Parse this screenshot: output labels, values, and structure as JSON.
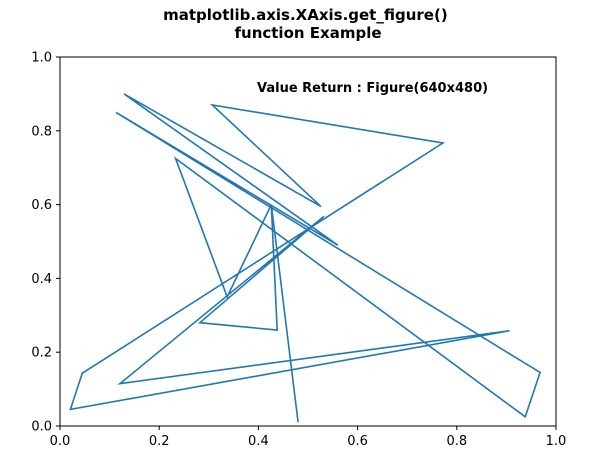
{
  "chart_data": {
    "type": "line",
    "title": "matplotlib.axis.XAxis.get_figure()\nfunction Example",
    "xlabel": "",
    "ylabel": "",
    "xlim": [
      0.0,
      1.0
    ],
    "ylim": [
      0.0,
      1.0
    ],
    "grid": false,
    "xticks": [
      "0.0",
      "0.2",
      "0.4",
      "0.6",
      "0.8",
      "1.0"
    ],
    "yticks": [
      "0.0",
      "0.2",
      "0.4",
      "0.6",
      "0.8",
      "1.0"
    ],
    "annotation": "Value Return : Figure(640x480)",
    "series": [
      {
        "color": "#1f77b4",
        "points": [
          [
            0.48,
            0.01
          ],
          [
            0.426,
            0.6
          ],
          [
            0.438,
            0.26
          ],
          [
            0.282,
            0.28
          ],
          [
            0.532,
            0.568
          ],
          [
            0.121,
            0.115
          ],
          [
            0.906,
            0.258
          ],
          [
            0.021,
            0.045
          ],
          [
            0.045,
            0.143
          ],
          [
            0.772,
            0.767
          ],
          [
            0.307,
            0.87
          ],
          [
            0.526,
            0.595
          ],
          [
            0.129,
            0.9
          ],
          [
            0.56,
            0.49
          ],
          [
            0.113,
            0.85
          ],
          [
            0.968,
            0.145
          ],
          [
            0.938,
            0.025
          ],
          [
            0.233,
            0.725
          ],
          [
            0.337,
            0.35
          ],
          [
            0.426,
            0.6
          ]
        ]
      }
    ]
  }
}
